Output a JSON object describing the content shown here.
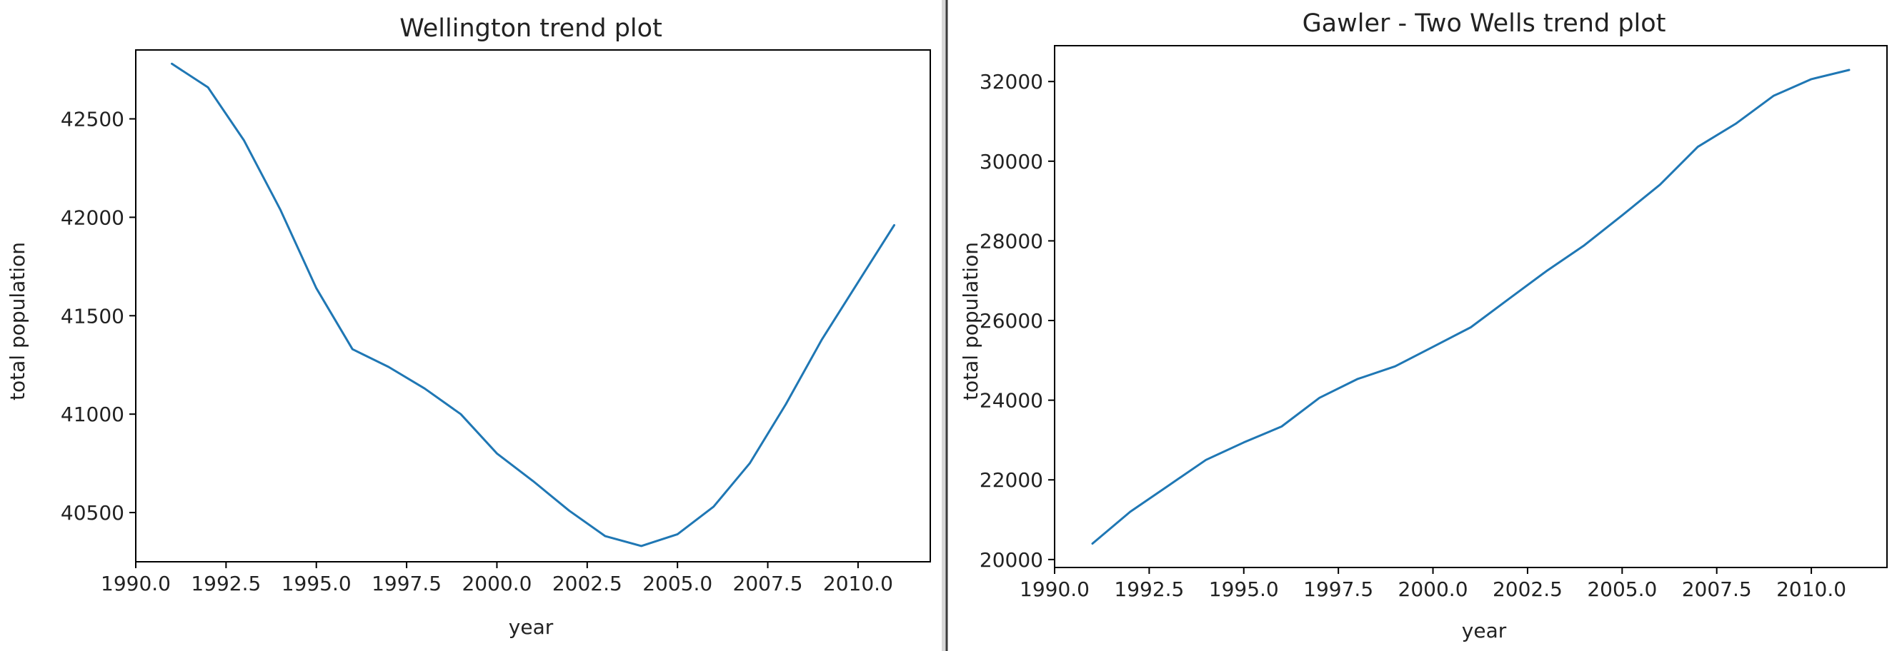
{
  "theme": {
    "line_color": "#1f77b4",
    "axis_color": "#000000",
    "text_color": "#222222"
  },
  "chart_data": [
    {
      "type": "line",
      "title": "Wellington trend plot",
      "xlabel": "year",
      "ylabel": "total population",
      "xlim": [
        1990.0,
        2012.0
      ],
      "ylim": [
        40250,
        42850
      ],
      "xticks": [
        1990.0,
        1992.5,
        1995.0,
        1997.5,
        2000.0,
        2002.5,
        2005.0,
        2007.5,
        2010.0
      ],
      "xtick_labels": [
        "1990.0",
        "1992.5",
        "1995.0",
        "1997.5",
        "2000.0",
        "2002.5",
        "2005.0",
        "2007.5",
        "2010.0"
      ],
      "yticks": [
        40500,
        41000,
        41500,
        42000,
        42500
      ],
      "ytick_labels": [
        "40500",
        "41000",
        "41500",
        "42000",
        "42500"
      ],
      "grid": false,
      "series": [
        {
          "x": [
            1991,
            1992,
            1993,
            1994,
            1995,
            1996,
            1997,
            1998,
            1999,
            2000,
            2001,
            2002,
            2003,
            2004,
            2005,
            2006,
            2007,
            2008,
            2009,
            2010,
            2011
          ],
          "y": [
            42780,
            42660,
            42390,
            42040,
            41640,
            41330,
            41240,
            41130,
            41000,
            40800,
            40660,
            40510,
            40380,
            40330,
            40390,
            40530,
            40750,
            41050,
            41380,
            41670,
            41960
          ]
        }
      ]
    },
    {
      "type": "line",
      "title": "Gawler - Two Wells trend plot",
      "xlabel": "year",
      "ylabel": "total population",
      "xlim": [
        1990.0,
        2012.0
      ],
      "ylim": [
        19800,
        32900
      ],
      "xticks": [
        1990.0,
        1992.5,
        1995.0,
        1997.5,
        2000.0,
        2002.5,
        2005.0,
        2007.5,
        2010.0
      ],
      "xtick_labels": [
        "1990.0",
        "1992.5",
        "1995.0",
        "1997.5",
        "2000.0",
        "2002.5",
        "2005.0",
        "2007.5",
        "2010.0"
      ],
      "yticks": [
        20000,
        22000,
        24000,
        26000,
        28000,
        30000,
        32000
      ],
      "ytick_labels": [
        "20000",
        "22000",
        "24000",
        "26000",
        "28000",
        "30000",
        "32000"
      ],
      "grid": false,
      "series": [
        {
          "x": [
            1991,
            1992,
            1993,
            1994,
            1995,
            1996,
            1997,
            1998,
            1999,
            2000,
            2001,
            2002,
            2003,
            2004,
            2005,
            2006,
            2007,
            2008,
            2009,
            2010,
            2011
          ],
          "y": [
            20400,
            21200,
            21850,
            22500,
            22940,
            23340,
            24060,
            24530,
            24850,
            25340,
            25830,
            26540,
            27240,
            27890,
            28640,
            29410,
            30360,
            30940,
            31640,
            32060,
            32290
          ]
        }
      ]
    }
  ]
}
